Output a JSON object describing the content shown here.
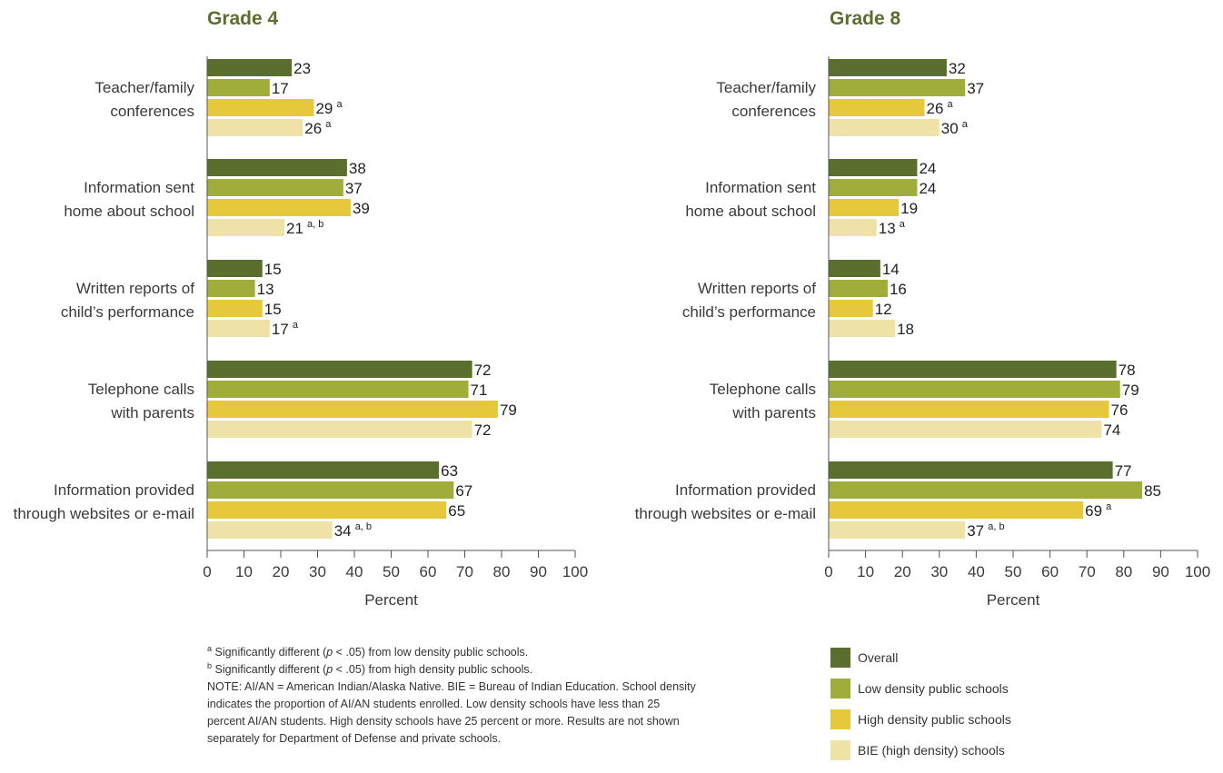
{
  "colors": {
    "overall": "#5a6e2e",
    "low": "#a0ad3a",
    "high": "#e6c93a",
    "bie": "#efe2a6",
    "title": "#5a6e2e",
    "text": "#3a3a3a"
  },
  "chart_data": [
    {
      "type": "bar",
      "orientation": "horizontal",
      "title": "Grade 4",
      "xlabel": "Percent",
      "xlim": [
        0,
        100
      ],
      "ticks": [
        "0",
        "10",
        "20",
        "30",
        "40",
        "50",
        "60",
        "70",
        "80",
        "90",
        "100"
      ],
      "categories": [
        [
          "Teacher/family",
          "conferences"
        ],
        [
          "Information sent",
          "home about school"
        ],
        [
          "Written reports of",
          "child’s performance"
        ],
        [
          "Telephone calls",
          "with parents"
        ],
        [
          "Information provided",
          "through websites or e-mail"
        ]
      ],
      "series": [
        {
          "name": "Overall",
          "values": [
            23,
            38,
            15,
            72,
            63
          ],
          "notes": [
            "",
            "",
            "",
            "",
            ""
          ]
        },
        {
          "name": "Low density public schools",
          "values": [
            17,
            37,
            13,
            71,
            67
          ],
          "notes": [
            "",
            "",
            "",
            "",
            ""
          ]
        },
        {
          "name": "High density public schools",
          "values": [
            29,
            39,
            15,
            79,
            65
          ],
          "notes": [
            "a",
            "",
            "",
            "",
            ""
          ]
        },
        {
          "name": "BIE (high density) schools",
          "values": [
            26,
            21,
            17,
            72,
            34
          ],
          "notes": [
            "a",
            "a, b",
            "a",
            "",
            "a, b"
          ]
        }
      ]
    },
    {
      "type": "bar",
      "orientation": "horizontal",
      "title": "Grade 8",
      "xlabel": "Percent",
      "xlim": [
        0,
        100
      ],
      "ticks": [
        "0",
        "10",
        "20",
        "30",
        "40",
        "50",
        "60",
        "70",
        "80",
        "90",
        "100"
      ],
      "categories": [
        [
          "Teacher/family",
          "conferences"
        ],
        [
          "Information sent",
          "home about school"
        ],
        [
          "Written reports of",
          "child’s performance"
        ],
        [
          "Telephone calls",
          "with parents"
        ],
        [
          "Information provided",
          "through websites or e-mail"
        ]
      ],
      "series": [
        {
          "name": "Overall",
          "values": [
            32,
            24,
            14,
            78,
            77
          ],
          "notes": [
            "",
            "",
            "",
            "",
            ""
          ]
        },
        {
          "name": "Low density public schools",
          "values": [
            37,
            24,
            16,
            79,
            85
          ],
          "notes": [
            "",
            "",
            "",
            "",
            ""
          ]
        },
        {
          "name": "High density public schools",
          "values": [
            26,
            19,
            12,
            76,
            69
          ],
          "notes": [
            "a",
            "",
            "",
            "",
            "a"
          ]
        },
        {
          "name": "BIE (high density) schools",
          "values": [
            30,
            13,
            18,
            74,
            37
          ],
          "notes": [
            "a",
            "a",
            "",
            "",
            "a, b"
          ]
        }
      ]
    }
  ],
  "footnotes": {
    "a_marker": "a",
    "a_text_1": " Significantly different (",
    "a_p": "p",
    "a_text_2": " < .05) from low density public schools.",
    "b_marker": "b",
    "b_text_1": " Significantly different (",
    "b_p": "p",
    "b_text_2": " < .05) from high density public schools.",
    "note": "NOTE: AI/AN = American Indian/Alaska Native. BIE = Bureau of Indian Education. School density indicates the proportion of AI/AN students enrolled. Low density schools have less than 25 percent AI/AN students. High density schools have 25 percent or more. Results are not shown separately for Department of Defense and private schools."
  },
  "legend": [
    {
      "label": "Overall",
      "color": "#5a6e2e"
    },
    {
      "label": "Low density public schools",
      "color": "#a0ad3a"
    },
    {
      "label": "High density public schools",
      "color": "#e6c93a"
    },
    {
      "label": "BIE (high density) schools",
      "color": "#efe2a6"
    }
  ]
}
